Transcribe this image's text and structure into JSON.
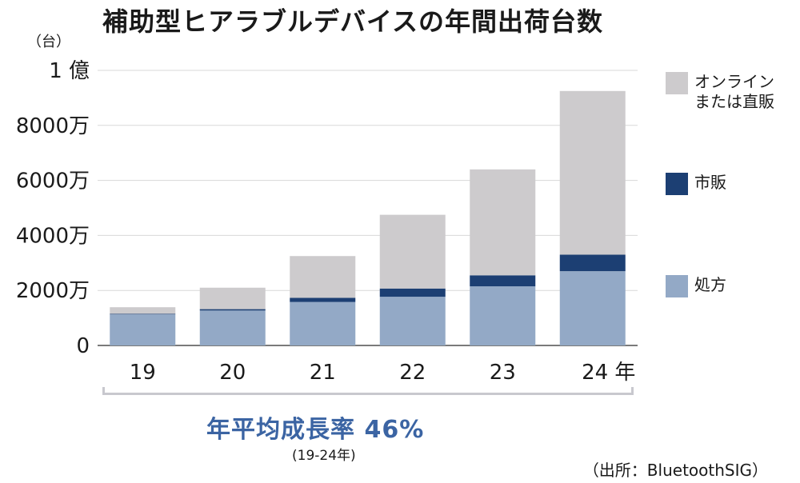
{
  "title": "補助型ヒアラブルデバイスの年間出荷台数",
  "unit_label": "（台）",
  "cagr_label": "年平均成長率 46%",
  "cagr_period": "(19-24年)",
  "source": "（出所：BluetoothSIG）",
  "colors": {
    "online": "#cdcbcd",
    "retail": "#1c3f73",
    "prescription": "#93a9c6"
  },
  "chart_data": {
    "type": "bar",
    "stacked": true,
    "categories": [
      "19",
      "20",
      "21",
      "22",
      "23",
      "24 年"
    ],
    "series": [
      {
        "name": "処方",
        "values": [
          1130,
          1270,
          1580,
          1770,
          2150,
          2700
        ]
      },
      {
        "name": "市販",
        "values": [
          20,
          50,
          150,
          300,
          400,
          600
        ]
      },
      {
        "name": "オンライン\nまたは直販",
        "values": [
          240,
          780,
          1520,
          2680,
          3850,
          5950
        ]
      }
    ],
    "y_ticks": [
      {
        "value": 0,
        "label": "0"
      },
      {
        "value": 2000,
        "label": "2000万"
      },
      {
        "value": 4000,
        "label": "4000万"
      },
      {
        "value": 6000,
        "label": "6000万"
      },
      {
        "value": 8000,
        "label": "8000万"
      },
      {
        "value": 10000,
        "label": "1 億"
      }
    ],
    "ylim": [
      0,
      10000
    ],
    "grid": true,
    "legend": "right"
  }
}
